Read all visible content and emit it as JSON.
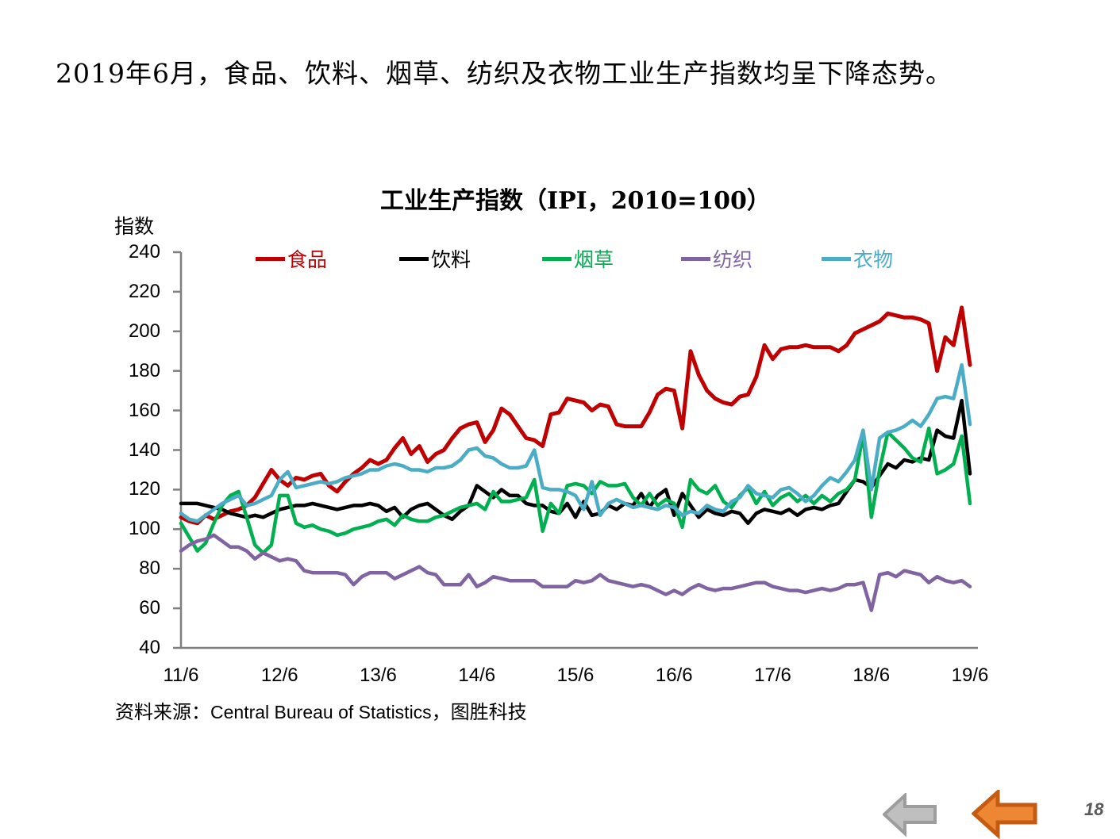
{
  "page": {
    "title": "2019年6月，食品、饮料、烟草、纺织及衣物工业生产指数均呈下降态势。",
    "page_number": "18"
  },
  "chart": {
    "title": "工业生产指数（IPI，2010=100）",
    "y_axis_label": "指数",
    "source": {
      "prefix": "资料来源：",
      "latin": "Central Bureau of Statistics",
      "suffix": "，图胜科技"
    }
  },
  "nav": {
    "gray_arrow": "back-arrow-gray",
    "orange_arrow": "back-arrow-orange",
    "gray_fill": "#bfbfbf",
    "gray_stroke": "#9d9d9d",
    "orange_fill": "#ed8733",
    "orange_stroke": "#c55a11"
  },
  "chart_data": {
    "type": "line",
    "title": "工业生产指数（IPI，2010=100）",
    "ylabel": "指数",
    "ylim": [
      40,
      240
    ],
    "y_ticks": [
      240,
      220,
      200,
      180,
      160,
      140,
      120,
      100,
      80,
      60,
      40
    ],
    "x_tick_labels": [
      "11/6",
      "12/6",
      "13/6",
      "14/6",
      "15/6",
      "16/6",
      "17/6",
      "18/6",
      "19/6"
    ],
    "x_start": "2011-06",
    "x_end": "2019-06",
    "frequency": "monthly",
    "grid": false,
    "legend_position": "top",
    "series": [
      {
        "key": "food",
        "name": "食品",
        "color": "#C00000",
        "values": [
          106,
          104,
          103,
          107,
          105,
          107,
          109,
          110,
          112,
          116,
          123,
          130,
          125,
          122,
          126,
          125,
          127,
          128,
          122,
          119,
          124,
          128,
          131,
          135,
          133,
          135,
          141,
          146,
          138,
          142,
          134,
          138,
          140,
          146,
          151,
          153,
          154,
          144,
          150,
          161,
          158,
          152,
          146,
          145,
          142,
          158,
          159,
          166,
          165,
          164,
          160,
          163,
          162,
          153,
          152,
          152,
          152,
          159,
          168,
          171,
          170,
          151,
          190,
          178,
          170,
          166,
          164,
          163,
          167,
          168,
          177,
          193,
          186,
          191,
          192,
          192,
          193,
          192,
          192,
          192,
          190,
          193,
          199,
          201,
          203,
          205,
          209,
          208,
          207,
          207,
          206,
          204,
          180,
          197,
          193,
          212,
          183
        ]
      },
      {
        "key": "beverage",
        "name": "饮料",
        "color": "#000000",
        "values": [
          113,
          113,
          113,
          112,
          111,
          110,
          108,
          107,
          106,
          107,
          106,
          108,
          110,
          111,
          112,
          112,
          113,
          112,
          111,
          110,
          111,
          112,
          112,
          113,
          112,
          109,
          111,
          106,
          110,
          112,
          113,
          110,
          107,
          105,
          109,
          112,
          122,
          119,
          116,
          120,
          117,
          117,
          113,
          112,
          112,
          109,
          108,
          113,
          106,
          114,
          107,
          108,
          112,
          110,
          113,
          112,
          118,
          111,
          117,
          120,
          107,
          118,
          112,
          106,
          110,
          108,
          107,
          109,
          108,
          103,
          108,
          110,
          109,
          108,
          110,
          107,
          110,
          111,
          110,
          112,
          113,
          119,
          125,
          124,
          121,
          127,
          133,
          131,
          135,
          134,
          136,
          135,
          150,
          147,
          146,
          165,
          128
        ]
      },
      {
        "key": "tobacco",
        "name": "烟草",
        "color": "#00B050",
        "values": [
          103,
          96,
          89,
          93,
          103,
          112,
          117,
          119,
          106,
          92,
          88,
          92,
          117,
          117,
          103,
          101,
          102,
          100,
          99,
          97,
          98,
          100,
          101,
          102,
          104,
          105,
          102,
          107,
          105,
          104,
          104,
          106,
          107,
          109,
          111,
          112,
          113,
          110,
          119,
          114,
          114,
          115,
          116,
          125,
          99,
          113,
          108,
          122,
          123,
          122,
          118,
          124,
          122,
          122,
          123,
          116,
          112,
          118,
          112,
          115,
          113,
          101,
          125,
          120,
          118,
          122,
          114,
          111,
          117,
          121,
          113,
          119,
          112,
          116,
          118,
          114,
          117,
          113,
          117,
          114,
          118,
          120,
          125,
          148,
          106,
          130,
          149,
          145,
          141,
          136,
          134,
          151,
          128,
          130,
          133,
          147,
          113
        ]
      },
      {
        "key": "textile",
        "name": "纺织",
        "color": "#8064A2",
        "values": [
          89,
          92,
          94,
          95,
          97,
          94,
          91,
          91,
          89,
          85,
          88,
          86,
          84,
          85,
          84,
          79,
          78,
          78,
          78,
          78,
          77,
          72,
          76,
          78,
          78,
          78,
          75,
          77,
          79,
          81,
          78,
          77,
          72,
          72,
          72,
          77,
          71,
          73,
          76,
          75,
          74,
          74,
          74,
          74,
          71,
          71,
          71,
          71,
          74,
          73,
          74,
          77,
          74,
          73,
          72,
          71,
          72,
          71,
          69,
          67,
          69,
          67,
          70,
          72,
          70,
          69,
          70,
          70,
          71,
          72,
          73,
          73,
          71,
          70,
          69,
          69,
          68,
          69,
          70,
          69,
          70,
          72,
          72,
          73,
          59,
          77,
          78,
          76,
          79,
          78,
          77,
          73,
          76,
          74,
          73,
          74,
          71
        ]
      },
      {
        "key": "clothing",
        "name": "衣物",
        "color": "#4BACC6",
        "values": [
          108,
          105,
          104,
          107,
          110,
          113,
          115,
          117,
          112,
          113,
          115,
          117,
          125,
          129,
          121,
          122,
          123,
          124,
          123,
          124,
          126,
          127,
          128,
          130,
          130,
          132,
          133,
          132,
          130,
          130,
          129,
          131,
          131,
          132,
          135,
          140,
          141,
          137,
          136,
          133,
          131,
          131,
          132,
          140,
          121,
          120,
          120,
          119,
          117,
          110,
          124,
          107,
          113,
          115,
          113,
          111,
          112,
          111,
          110,
          112,
          111,
          107,
          109,
          108,
          112,
          110,
          109,
          114,
          116,
          122,
          118,
          117,
          116,
          120,
          121,
          118,
          114,
          117,
          122,
          126,
          124,
          129,
          135,
          150,
          120,
          146,
          149,
          150,
          152,
          155,
          152,
          158,
          166,
          167,
          166,
          183,
          153
        ]
      }
    ]
  }
}
